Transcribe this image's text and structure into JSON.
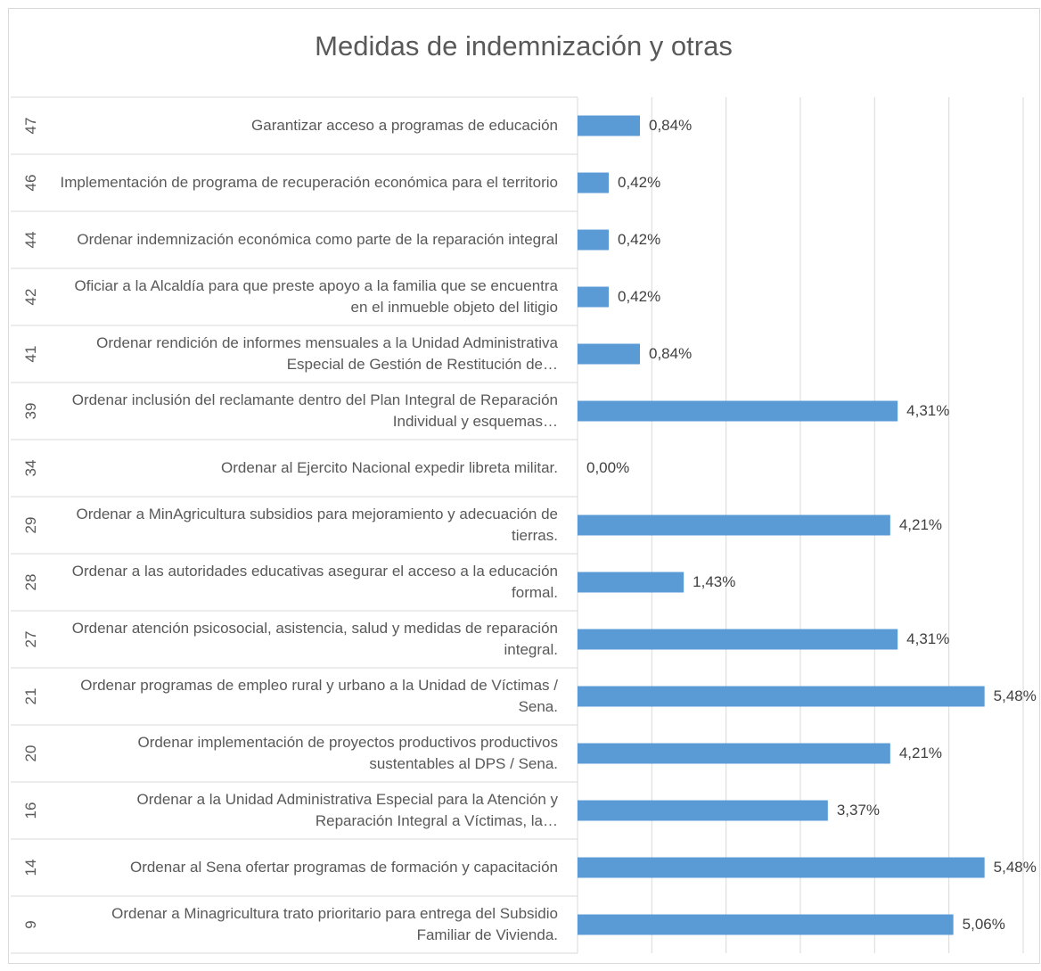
{
  "chart_data": {
    "type": "bar",
    "orientation": "horizontal",
    "title": "Medidas de indemnización y otras",
    "groups": [
      "47",
      "46",
      "44",
      "42",
      "41",
      "39",
      "34",
      "29",
      "28",
      "27",
      "21",
      "20",
      "16",
      "14",
      "9"
    ],
    "categories": [
      "Garantizar acceso a programas de educación",
      "Implementación de programa de recuperación económica para el territorio",
      "Ordenar indemnización económica como parte de la reparación integral",
      "Oficiar a la Alcaldía para que preste apoyo a la familia que se encuentra en el inmueble objeto del litigio",
      "Ordenar rendición de informes mensuales a la Unidad Administrativa Especial de Gestión de Restitución de…",
      "Ordenar inclusión del reclamante dentro del Plan Integral de Reparación Individual y esquemas…",
      "Ordenar al Ejercito Nacional expedir libreta militar.",
      "Ordenar a MinAgricultura subsidios para mejoramiento y adecuación de tierras.",
      "Ordenar a las autoridades educativas asegurar el acceso a la educación formal.",
      "Ordenar atención psicosocial, asistencia, salud y medidas de reparación integral.",
      "Ordenar programas de empleo rural y urbano a la Unidad de Víctimas / Sena.",
      "Ordenar implementación de proyectos productivos productivos sustentables al DPS / Sena.",
      "Ordenar a la Unidad Administrativa Especial para la Atención y Reparación Integral a Víctimas, la…",
      "Ordenar al Sena ofertar programas de formación y capacitación",
      "Ordenar a Minagricultura trato prioritario para entrega del Subsidio Familiar de Vivienda."
    ],
    "values": [
      0.84,
      0.42,
      0.42,
      0.42,
      0.84,
      4.31,
      0,
      4.21,
      1.43,
      4.31,
      5.48,
      4.21,
      3.37,
      5.48,
      5.06
    ],
    "value_labels": [
      "0,84%",
      "0,42%",
      "0,42%",
      "0,42%",
      "0,84%",
      "4,31%",
      "0,00%",
      "4,21%",
      "1,43%",
      "4,31%",
      "5,48%",
      "4,21%",
      "3,37%",
      "5,48%",
      "5,06%"
    ],
    "color": "#5b9bd5",
    "xlim": [
      0,
      6
    ],
    "xticks": [
      0,
      1,
      2,
      3,
      4,
      5,
      6
    ],
    "grid": true
  }
}
